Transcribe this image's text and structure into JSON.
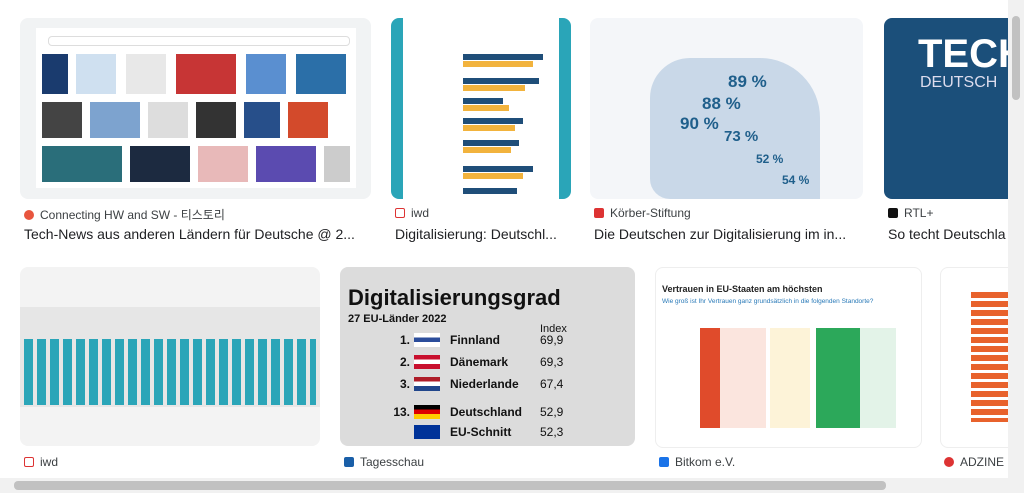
{
  "results": {
    "row1": [
      {
        "source": "Connecting HW and SW - 티스토리",
        "title": "Tech-News aus anderen Ländern für Deutsche @ 2..."
      },
      {
        "source": "iwd",
        "title": "Digitalisierung: Deutschl..."
      },
      {
        "source": "Körber-Stiftung",
        "title": "Die Deutschen zur Digitalisierung im in..."
      },
      {
        "source": "RTL+",
        "title": "So techt Deutschla"
      }
    ],
    "row2": [
      {
        "source": "iwd"
      },
      {
        "source": "Tagesschau"
      },
      {
        "source": "Bitkom e.V."
      },
      {
        "source": "ADZINE"
      }
    ]
  },
  "thumbnails": {
    "koerber": {
      "values": [
        "89 %",
        "88 %",
        "90 %",
        "73 %",
        "52 %",
        "54 %"
      ]
    },
    "rtl": {
      "line1": "TECH",
      "line2": "DEUTSCH"
    },
    "tagesschau": {
      "title": "Digitalisierungsgrad",
      "subtitle": "27 EU-Länder 2022",
      "column": "Index",
      "rows": [
        {
          "rank": "1.",
          "country": "Finnland",
          "index": "69,9"
        },
        {
          "rank": "2.",
          "country": "Dänemark",
          "index": "69,3"
        },
        {
          "rank": "3.",
          "country": "Niederlande",
          "index": "67,4"
        },
        {
          "rank": "13.",
          "country": "Deutschland",
          "index": "52,9"
        },
        {
          "rank": "",
          "country": "EU-Schnitt",
          "index": "52,3"
        }
      ]
    },
    "bitkom": {
      "title": "Vertrauen in EU-Staaten am höchsten",
      "subtitle": "Wie groß ist Ihr Vertrauen ganz grundsätzlich in die folgenden Standorte?"
    }
  }
}
